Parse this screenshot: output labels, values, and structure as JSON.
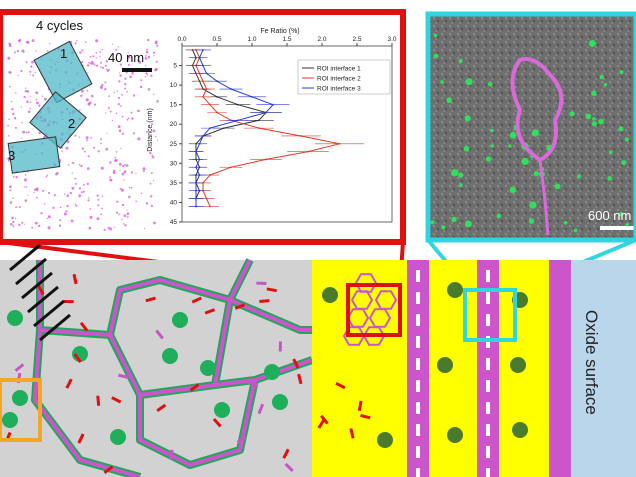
{
  "left_panel": {
    "cycles_label": "4 cycles",
    "scale_label": "40 nm",
    "roi_numbers": [
      "1",
      "2",
      "3"
    ]
  },
  "right_panel": {
    "scale_label": "600 nm"
  },
  "schematic": {
    "oxide_label": "Oxide surface"
  },
  "colors": {
    "red_frame": "#e01010",
    "cyan_frame": "#2fd6e0",
    "orange_box": "#f5a623",
    "grain_bg": "#d2d2d2",
    "grain_boundary_green": "#22a65a",
    "grain_boundary_magenta": "#cc55cc",
    "precipitate_green": "#1fae5b",
    "yellow_layer": "#ffff00",
    "oxide_blue": "#b9d6ea",
    "dark_green_dot": "#4a7a2c"
  },
  "chart_data": {
    "type": "line",
    "title": "",
    "xlabel": "Fe Ratio (%)",
    "ylabel": "Distance (nm)",
    "xlim": [
      0,
      3.0
    ],
    "ylim": [
      45,
      0
    ],
    "xticks": [
      "0.0",
      "0.5",
      "1.0",
      "1.5",
      "2.0",
      "2.5",
      "3.0"
    ],
    "yticks": [
      "5",
      "10",
      "15",
      "20",
      "25",
      "30",
      "35",
      "40",
      "45"
    ],
    "legend_position": "top-right",
    "series": [
      {
        "name": "ROI interface 1",
        "color": "#333333",
        "x": [
          0.15,
          0.2,
          0.15,
          0.2,
          0.25,
          0.3,
          0.5,
          0.8,
          1.2,
          1.1,
          0.6,
          0.3,
          0.2,
          0.2,
          0.2,
          0.25,
          0.2,
          0.2,
          0.25,
          0.2,
          0.2
        ],
        "y": [
          1,
          3,
          5,
          7,
          9,
          11,
          13,
          15,
          17,
          19,
          21,
          23,
          25,
          27,
          29,
          31,
          33,
          35,
          37,
          39,
          41
        ]
      },
      {
        "name": "ROI interface 2",
        "color": "#e03a2a",
        "x": [
          0.2,
          0.25,
          0.2,
          0.25,
          0.3,
          0.35,
          0.3,
          0.4,
          0.5,
          0.7,
          1.1,
          1.7,
          2.25,
          1.8,
          1.2,
          0.7,
          0.4,
          0.3,
          0.3,
          0.35,
          0.4
        ],
        "y": [
          1,
          3,
          5,
          7,
          9,
          11,
          13,
          15,
          17,
          19,
          21,
          23,
          25,
          27,
          29,
          31,
          33,
          35,
          37,
          39,
          41
        ]
      },
      {
        "name": "ROI interface 3",
        "color": "#2a3ae0",
        "x": [
          0.3,
          0.25,
          0.3,
          0.35,
          0.5,
          0.7,
          1.0,
          1.3,
          1.2,
          0.8,
          0.4,
          0.3,
          0.25,
          0.2,
          0.25,
          0.2,
          0.25,
          0.2,
          0.2,
          0.2,
          0.2
        ],
        "y": [
          1,
          3,
          5,
          7,
          9,
          11,
          13,
          15,
          17,
          19,
          21,
          23,
          25,
          27,
          29,
          31,
          33,
          35,
          37,
          39,
          41
        ]
      }
    ]
  }
}
